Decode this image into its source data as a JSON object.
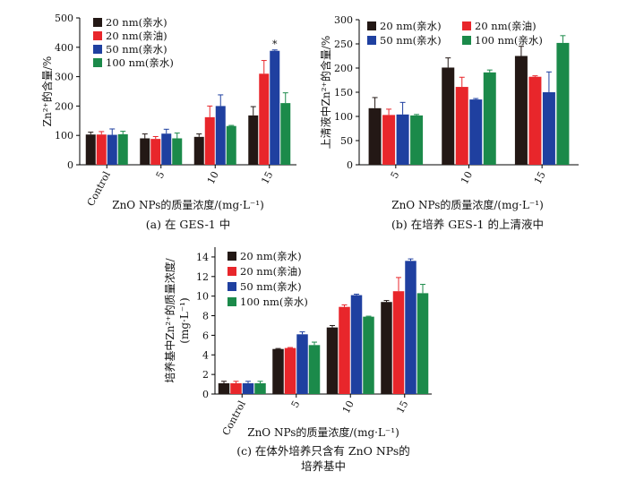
{
  "colors": {
    "s20w": "#231815",
    "s20o": "#e8262b",
    "s50w": "#1f40a0",
    "s100w": "#1b8a4a"
  },
  "chart_data": [
    {
      "type": "bar",
      "title": "",
      "caption": "(a) 在 GES-1 中",
      "xlabel": "ZnO NPs的质量浓度/(mg·L⁻¹)",
      "ylabel": "Zn²⁺的含量/%",
      "ylim": [
        0,
        500
      ],
      "yticks": [
        0,
        100,
        200,
        300,
        400,
        500
      ],
      "categories": [
        "Control",
        "5",
        "10",
        "15"
      ],
      "rotated_xticks": true,
      "legend_columns": 1,
      "series": [
        {
          "name": "20 nm(亲水)",
          "color_key": "s20w",
          "values": [
            103,
            90,
            95,
            168
          ],
          "errors": [
            8,
            15,
            10,
            30
          ]
        },
        {
          "name": "20 nm(亲油)",
          "color_key": "s20o",
          "values": [
            103,
            88,
            162,
            310
          ],
          "errors": [
            10,
            8,
            38,
            45
          ]
        },
        {
          "name": "50 nm(亲水)",
          "color_key": "s50w",
          "values": [
            102,
            106,
            200,
            388
          ],
          "errors": [
            20,
            15,
            38,
            3
          ]
        },
        {
          "name": "100 nm(亲水)",
          "color_key": "s100w",
          "values": [
            104,
            90,
            132,
            210
          ],
          "errors": [
            10,
            18,
            2,
            35
          ]
        }
      ],
      "annotations": [
        {
          "text": "*",
          "category": "15",
          "series": 2
        }
      ]
    },
    {
      "type": "bar",
      "title": "",
      "caption": "(b) 在培养 GES-1 的上清液中",
      "xlabel": "ZnO NPs的质量浓度/(mg·L⁻¹)",
      "ylabel": "上清液中Zn²⁺的含量/%",
      "ylim": [
        0,
        300
      ],
      "yticks": [
        0,
        50,
        100,
        150,
        200,
        250,
        300
      ],
      "categories": [
        "5",
        "10",
        "15"
      ],
      "rotated_xticks": true,
      "legend_columns": 2,
      "series": [
        {
          "name": "20 nm(亲水)",
          "color_key": "s20w",
          "values": [
            117,
            201,
            225
          ],
          "errors": [
            22,
            20,
            20
          ]
        },
        {
          "name": "20 nm(亲油)",
          "color_key": "s20o",
          "values": [
            103,
            161,
            182
          ],
          "errors": [
            12,
            20,
            2
          ]
        },
        {
          "name": "50 nm(亲水)",
          "color_key": "s50w",
          "values": [
            104,
            135,
            150
          ],
          "errors": [
            25,
            2,
            42
          ]
        },
        {
          "name": "100 nm(亲水)",
          "color_key": "s100w",
          "values": [
            102,
            191,
            252
          ],
          "errors": [
            2,
            5,
            15
          ]
        }
      ]
    },
    {
      "type": "bar",
      "title": "",
      "caption_lines": [
        "(c) 在体外培养只含有 ZnO NPs的",
        "培养基中"
      ],
      "xlabel": "ZnO NPs的质量浓度/(mg·L⁻¹)",
      "ylabel_lines": [
        "培养基中Zn²⁺的质量浓度/",
        "(mg·L⁻¹)"
      ],
      "ylim": [
        0,
        15
      ],
      "yticks": [
        0,
        2,
        4,
        6,
        8,
        10,
        12,
        14
      ],
      "categories": [
        "Control",
        "5",
        "10",
        "15"
      ],
      "rotated_xticks": true,
      "legend_columns": 1,
      "series": [
        {
          "name": "20 nm(亲水)",
          "color_key": "s20w",
          "values": [
            1.1,
            4.6,
            6.8,
            9.4
          ],
          "errors": [
            0.2,
            0.05,
            0.2,
            0.15
          ]
        },
        {
          "name": "20 nm(亲油)",
          "color_key": "s20o",
          "values": [
            1.1,
            4.7,
            8.9,
            10.5
          ],
          "errors": [
            0.2,
            0.05,
            0.2,
            1.4
          ]
        },
        {
          "name": "50 nm(亲水)",
          "color_key": "s50w",
          "values": [
            1.1,
            6.1,
            10.1,
            13.6
          ],
          "errors": [
            0.2,
            0.25,
            0.1,
            0.2
          ]
        },
        {
          "name": "100 nm(亲水)",
          "color_key": "s100w",
          "values": [
            1.1,
            5.0,
            7.9,
            10.3
          ],
          "errors": [
            0.2,
            0.3,
            0.05,
            0.9
          ]
        }
      ]
    }
  ]
}
